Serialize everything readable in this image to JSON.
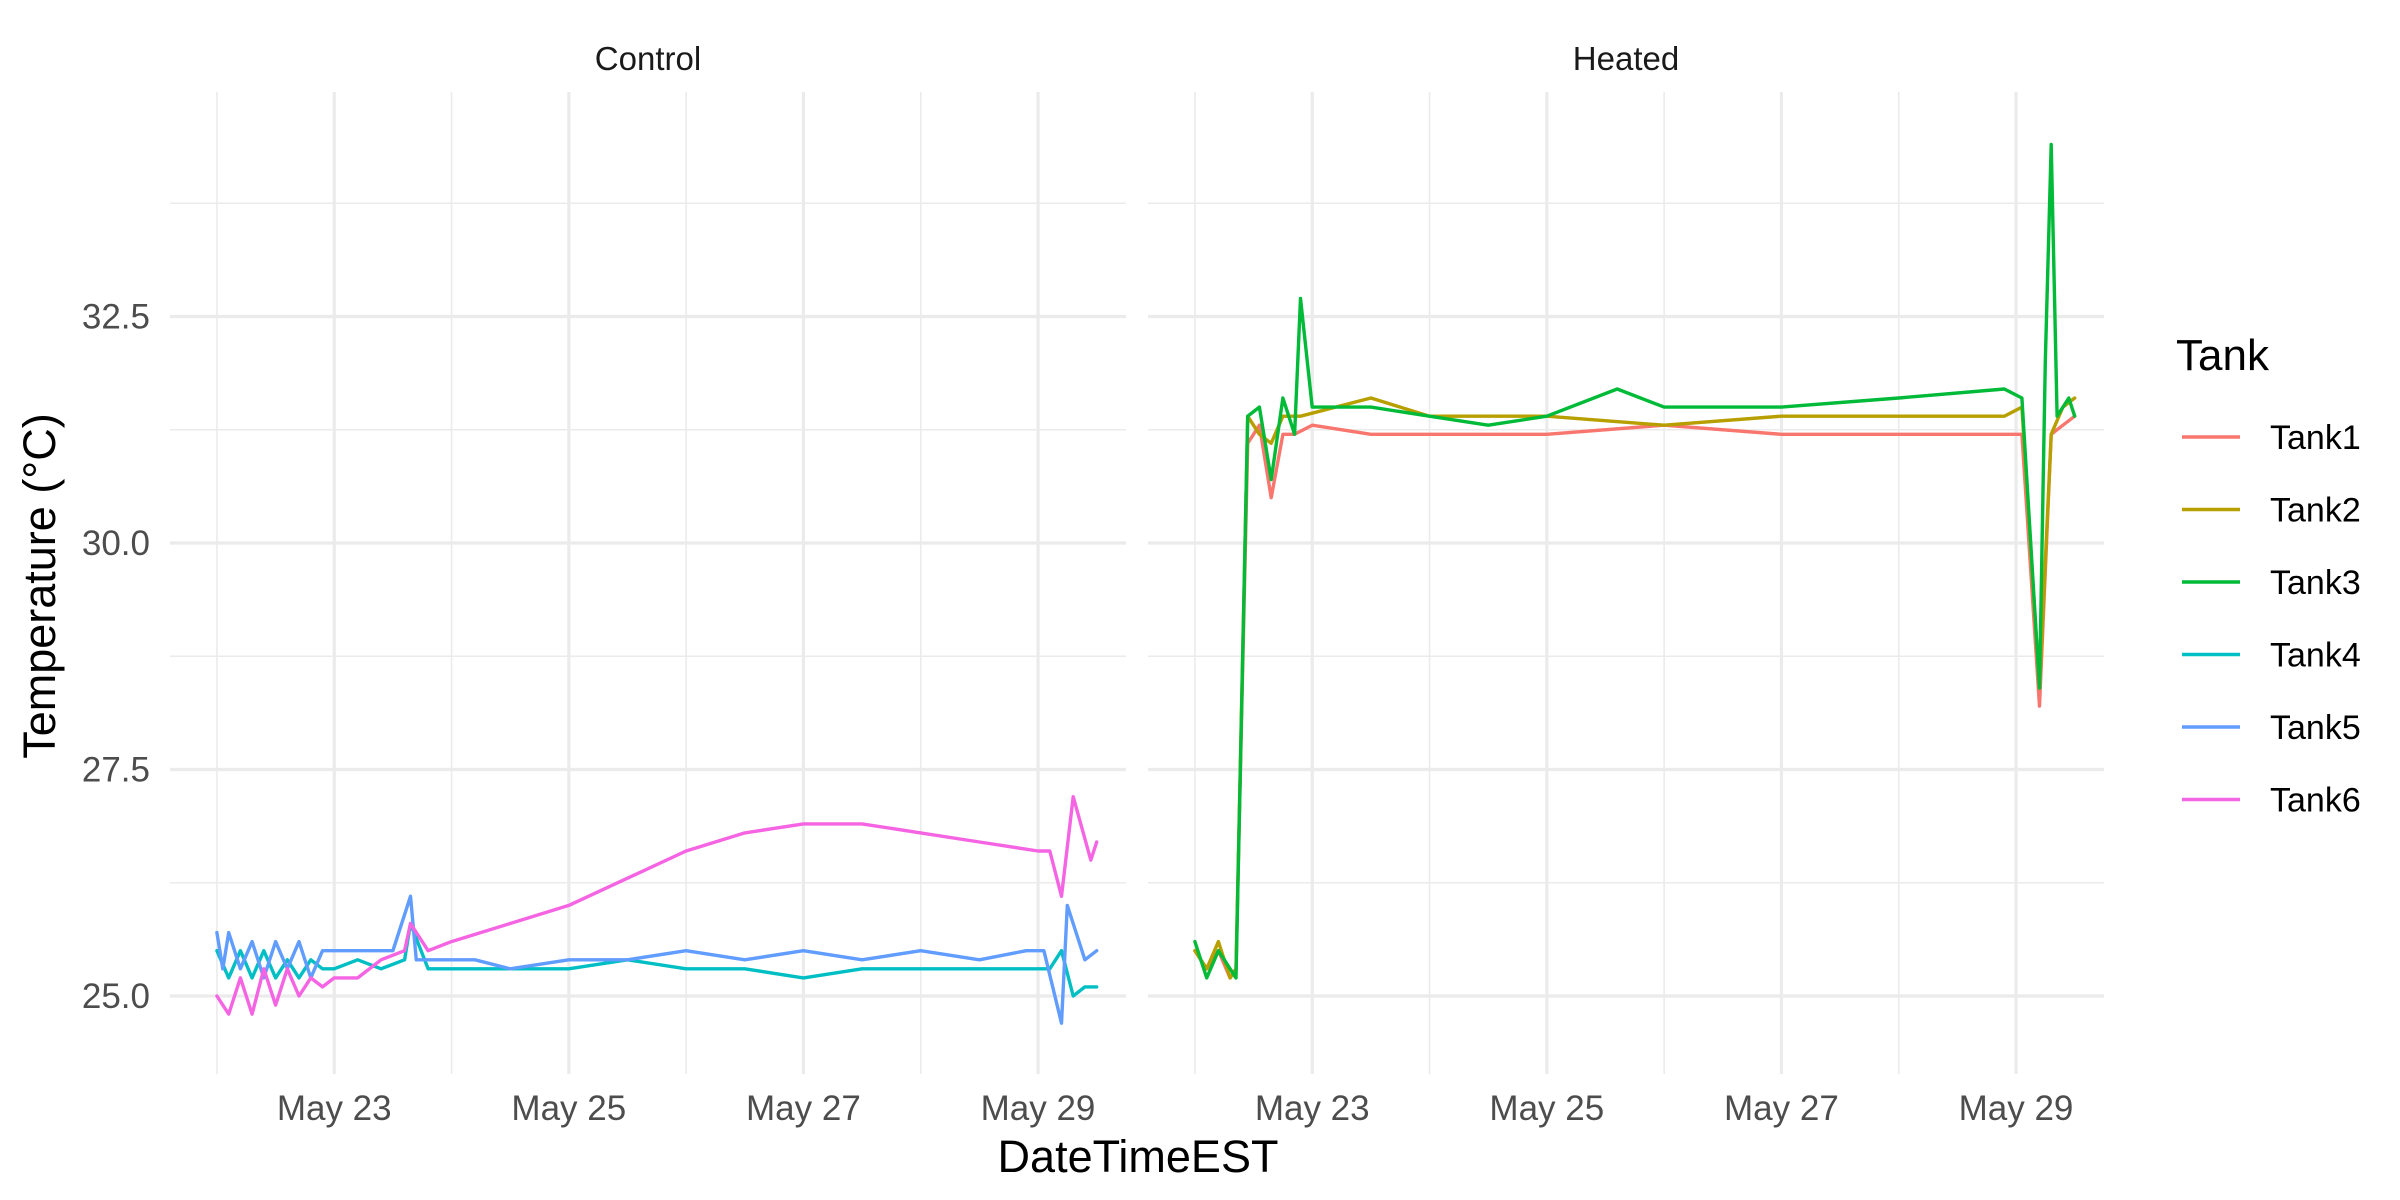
{
  "chart_data": {
    "type": "line",
    "xlabel": "DateTimeEST",
    "ylabel": "Temperature (°C)",
    "x_ticks": [
      "May 23",
      "May 25",
      "May 27",
      "May 29"
    ],
    "x_tick_values": [
      23,
      25,
      27,
      29
    ],
    "xlim": [
      "May 21",
      "May 30"
    ],
    "y_ticks": [
      "25.0",
      "27.5",
      "30.0",
      "32.5"
    ],
    "y_tick_values": [
      25.0,
      27.5,
      30.0,
      32.5
    ],
    "ylim": [
      24.25,
      35.0
    ],
    "grid": true,
    "legend": {
      "title": "Tank",
      "position": "right",
      "entries": [
        {
          "name": "Tank1",
          "color": "#F8766D"
        },
        {
          "name": "Tank2",
          "color": "#B79F00"
        },
        {
          "name": "Tank3",
          "color": "#00BA38"
        },
        {
          "name": "Tank4",
          "color": "#00BFC4"
        },
        {
          "name": "Tank5",
          "color": "#619CFF"
        },
        {
          "name": "Tank6",
          "color": "#F564E3"
        }
      ]
    },
    "panels": [
      {
        "title": "Control",
        "series": [
          {
            "name": "Tank4",
            "color": "#00BFC4",
            "x": [
              22.0,
              22.1,
              22.2,
              22.3,
              22.4,
              22.5,
              22.6,
              22.7,
              22.8,
              22.9,
              23.0,
              23.2,
              23.4,
              23.6,
              23.65,
              23.8,
              24.0,
              24.5,
              25.0,
              25.5,
              26.0,
              26.5,
              27.0,
              27.5,
              28.0,
              28.5,
              29.0,
              29.1,
              29.2,
              29.3,
              29.4,
              29.5
            ],
            "y": [
              25.5,
              25.2,
              25.5,
              25.2,
              25.5,
              25.2,
              25.4,
              25.2,
              25.4,
              25.3,
              25.3,
              25.4,
              25.3,
              25.4,
              25.8,
              25.3,
              25.3,
              25.3,
              25.3,
              25.4,
              25.3,
              25.3,
              25.2,
              25.3,
              25.3,
              25.3,
              25.3,
              25.3,
              25.5,
              25.0,
              25.1,
              25.1
            ]
          },
          {
            "name": "Tank5",
            "color": "#619CFF",
            "x": [
              22.0,
              22.05,
              22.1,
              22.2,
              22.3,
              22.4,
              22.5,
              22.6,
              22.7,
              22.8,
              22.9,
              23.0,
              23.3,
              23.5,
              23.65,
              23.7,
              23.9,
              24.2,
              24.5,
              25.0,
              25.5,
              26.0,
              26.5,
              27.0,
              27.5,
              28.0,
              28.5,
              28.9,
              29.05,
              29.2,
              29.25,
              29.4,
              29.5
            ],
            "y": [
              25.7,
              25.3,
              25.7,
              25.3,
              25.6,
              25.2,
              25.6,
              25.3,
              25.6,
              25.2,
              25.5,
              25.5,
              25.5,
              25.5,
              26.1,
              25.4,
              25.4,
              25.4,
              25.3,
              25.4,
              25.4,
              25.5,
              25.4,
              25.5,
              25.4,
              25.5,
              25.4,
              25.5,
              25.5,
              24.7,
              26.0,
              25.4,
              25.5
            ]
          },
          {
            "name": "Tank6",
            "color": "#F564E3",
            "x": [
              22.0,
              22.1,
              22.2,
              22.3,
              22.4,
              22.5,
              22.6,
              22.7,
              22.8,
              22.9,
              23.0,
              23.2,
              23.4,
              23.6,
              23.65,
              23.8,
              24.0,
              24.5,
              25.0,
              25.5,
              26.0,
              26.5,
              27.0,
              27.5,
              28.0,
              28.5,
              29.0,
              29.1,
              29.2,
              29.3,
              29.45,
              29.5
            ],
            "y": [
              25.0,
              24.8,
              25.2,
              24.8,
              25.3,
              24.9,
              25.3,
              25.0,
              25.2,
              25.1,
              25.2,
              25.2,
              25.4,
              25.5,
              25.8,
              25.5,
              25.6,
              25.8,
              26.0,
              26.3,
              26.6,
              26.8,
              26.9,
              26.9,
              26.8,
              26.7,
              26.6,
              26.6,
              26.1,
              27.2,
              26.5,
              26.7
            ]
          }
        ]
      },
      {
        "title": "Heated",
        "series": [
          {
            "name": "Tank1",
            "color": "#F8766D",
            "x": [
              22.0,
              22.1,
              22.2,
              22.3,
              22.35,
              22.45,
              22.55,
              22.65,
              22.75,
              22.85,
              23.0,
              23.5,
              24.0,
              25.0,
              26.0,
              27.0,
              28.0,
              28.9,
              29.05,
              29.2,
              29.3,
              29.4,
              29.5
            ],
            "y": [
              25.5,
              25.3,
              25.5,
              25.2,
              25.3,
              31.1,
              31.3,
              30.5,
              31.2,
              31.2,
              31.3,
              31.2,
              31.2,
              31.2,
              31.3,
              31.2,
              31.2,
              31.2,
              31.2,
              28.2,
              31.2,
              31.3,
              31.4
            ]
          },
          {
            "name": "Tank2",
            "color": "#B79F00",
            "x": [
              22.0,
              22.1,
              22.2,
              22.3,
              22.35,
              22.45,
              22.55,
              22.65,
              22.75,
              22.9,
              23.5,
              24.0,
              25.0,
              26.0,
              27.0,
              28.0,
              28.9,
              29.05,
              29.2,
              29.3,
              29.4,
              29.5
            ],
            "y": [
              25.5,
              25.3,
              25.6,
              25.2,
              25.3,
              31.4,
              31.2,
              31.1,
              31.4,
              31.4,
              31.6,
              31.4,
              31.4,
              31.3,
              31.4,
              31.4,
              31.4,
              31.5,
              28.4,
              31.2,
              31.5,
              31.6
            ]
          },
          {
            "name": "Tank3",
            "color": "#00BA38",
            "x": [
              22.0,
              22.1,
              22.2,
              22.3,
              22.35,
              22.45,
              22.55,
              22.65,
              22.75,
              22.85,
              22.9,
              23.0,
              23.5,
              24.0,
              24.5,
              25.0,
              25.6,
              26.0,
              27.0,
              28.0,
              28.9,
              29.05,
              29.2,
              29.25,
              29.3,
              29.35,
              29.45,
              29.5
            ],
            "y": [
              25.6,
              25.2,
              25.5,
              25.3,
              25.2,
              31.4,
              31.5,
              30.7,
              31.6,
              31.2,
              32.7,
              31.5,
              31.5,
              31.4,
              31.3,
              31.4,
              31.7,
              31.5,
              31.5,
              31.6,
              31.7,
              31.6,
              28.4,
              32.0,
              34.4,
              31.4,
              31.6,
              31.4
            ]
          }
        ]
      }
    ]
  }
}
